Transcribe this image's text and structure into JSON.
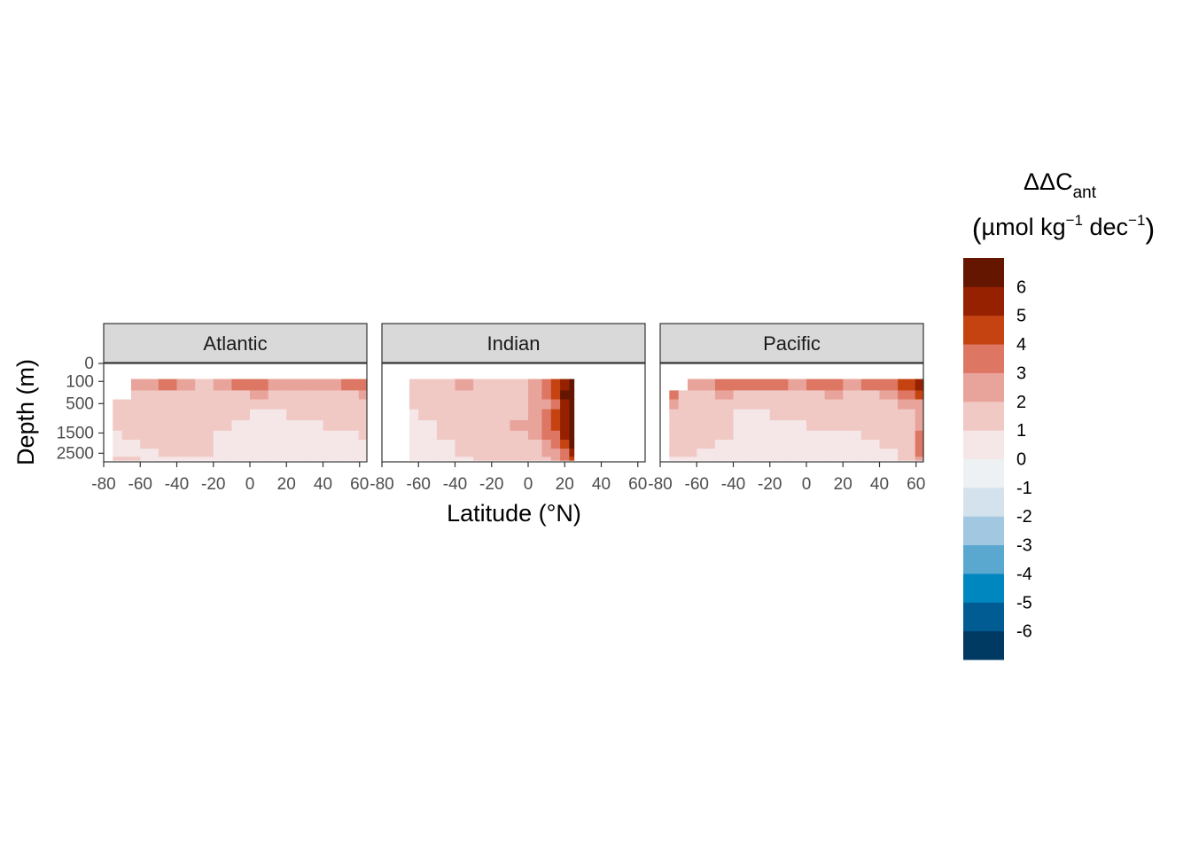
{
  "chart_data": {
    "type": "heatmap",
    "plot_style": "faceted filled-contour depth sections",
    "xlabel": "Latitude (°N)",
    "ylabel": "Depth (m)",
    "x_ticks": [
      -80,
      -60,
      -40,
      -20,
      0,
      20,
      40,
      60
    ],
    "x_tick_labels": [
      "-80",
      "-60",
      "-40",
      "-20",
      "0",
      "20",
      "40",
      "60"
    ],
    "xlim": [
      -80,
      64
    ],
    "y_scale": "square-root, reversed",
    "y_ticks": [
      0,
      100,
      500,
      1500,
      2500
    ],
    "y_tick_labels": [
      "0",
      "100",
      "500",
      "1500",
      "2500"
    ],
    "ylim": [
      0,
      3000
    ],
    "facets": [
      {
        "name": "Atlantic",
        "lat": [
          -75,
          -65,
          -55,
          -45,
          -35,
          -25,
          -15,
          -5,
          5,
          15,
          25,
          35,
          45,
          55,
          64
        ],
        "depth": [
          150,
          300,
          500,
          800,
          1200,
          1600,
          2000,
          2500,
          2900
        ],
        "lat_start_by_depth": [
          -65,
          -65,
          -75,
          -75,
          -75,
          -75,
          -75,
          -75,
          -75
        ],
        "values": [
          [
            2.6,
            2.1,
            2.5,
            3.1,
            2.3,
            1.8,
            2.2,
            3.0,
            3.8,
            2.5,
            2.0,
            2.6,
            2.2,
            3.0,
            3.6
          ],
          [
            1.8,
            1.6,
            1.7,
            1.9,
            1.6,
            1.4,
            1.5,
            1.8,
            2.0,
            1.6,
            1.4,
            1.6,
            1.5,
            1.7,
            2.0
          ],
          [
            1.3,
            1.2,
            1.5,
            1.3,
            1.2,
            1.4,
            1.3,
            1.2,
            1.1,
            1.2,
            1.2,
            1.3,
            1.3,
            1.4,
            1.5
          ],
          [
            1.2,
            1.4,
            1.6,
            1.3,
            1.5,
            1.2,
            1.3,
            1.1,
            0.9,
            0.9,
            1.0,
            1.1,
            1.2,
            1.3,
            1.4
          ],
          [
            1.1,
            1.3,
            1.4,
            1.5,
            1.3,
            1.2,
            1.0,
            0.8,
            0.7,
            0.8,
            0.8,
            0.9,
            1.0,
            1.1,
            1.2
          ],
          [
            0.8,
            1.1,
            1.2,
            1.4,
            1.3,
            1.1,
            0.9,
            0.7,
            0.6,
            0.7,
            0.7,
            0.8,
            0.9,
            0.9,
            1.0
          ],
          [
            0.7,
            0.9,
            1.1,
            1.2,
            1.4,
            1.2,
            0.8,
            0.6,
            0.6,
            0.6,
            0.6,
            0.7,
            0.8,
            0.8,
            0.9
          ],
          [
            0.7,
            0.8,
            0.9,
            1.0,
            1.1,
            1.0,
            0.8,
            0.6,
            0.5,
            0.5,
            0.6,
            0.6,
            0.7,
            0.7,
            0.8
          ],
          [
            1.1,
            1.0,
            0.9,
            0.8,
            0.8,
            0.7,
            0.6,
            0.6,
            0.5,
            0.5,
            0.5,
            0.6,
            0.6,
            0.6,
            0.7
          ]
        ]
      },
      {
        "name": "Indian",
        "lat": [
          -65,
          -55,
          -45,
          -35,
          -25,
          -15,
          -5,
          5,
          10,
          15,
          20,
          25
        ],
        "depth": [
          150,
          300,
          500,
          800,
          1200,
          1600,
          2000,
          2500,
          2900
        ],
        "lat_start_by_depth": [
          -65,
          -65,
          -65,
          -65,
          -65,
          -65,
          -65,
          -65,
          -65
        ],
        "values": [
          [
            1.4,
            1.2,
            1.7,
            2.0,
            1.5,
            1.8,
            1.6,
            2.6,
            3.0,
            4.0,
            5.6,
            6.6
          ],
          [
            1.3,
            1.1,
            1.5,
            1.3,
            1.6,
            1.4,
            1.8,
            2.4,
            3.2,
            4.5,
            6.2,
            6.8
          ],
          [
            1.2,
            1.0,
            1.2,
            1.5,
            1.3,
            1.6,
            1.7,
            2.1,
            2.8,
            3.6,
            5.1,
            6.9
          ],
          [
            0.8,
            1.2,
            1.4,
            1.3,
            1.6,
            1.8,
            1.9,
            2.3,
            3.0,
            4.2,
            5.4,
            7.0
          ],
          [
            0.6,
            0.9,
            1.2,
            1.4,
            1.5,
            1.7,
            2.0,
            2.6,
            3.4,
            4.6,
            5.8,
            7.0
          ],
          [
            0.5,
            0.7,
            1.0,
            1.3,
            1.4,
            1.6,
            1.8,
            2.2,
            3.0,
            3.9,
            5.3,
            6.8
          ],
          [
            0.5,
            0.6,
            0.9,
            1.1,
            1.3,
            1.5,
            1.7,
            1.9,
            2.5,
            3.2,
            4.6,
            6.5
          ],
          [
            0.5,
            0.6,
            0.8,
            1.0,
            1.1,
            1.3,
            1.5,
            1.7,
            2.1,
            2.7,
            3.8,
            5.9
          ],
          [
            0.5,
            0.5,
            0.7,
            0.9,
            1.0,
            1.2,
            1.4,
            1.6,
            1.9,
            2.4,
            3.1,
            4.8
          ]
        ]
      },
      {
        "name": "Pacific",
        "lat": [
          -75,
          -65,
          -55,
          -45,
          -35,
          -25,
          -15,
          -5,
          5,
          15,
          25,
          35,
          45,
          55,
          64
        ],
        "depth": [
          150,
          300,
          500,
          800,
          1200,
          1600,
          2000,
          2500,
          2900
        ],
        "lat_start_by_depth": [
          -65,
          -75,
          -75,
          -75,
          -75,
          -75,
          -75,
          -75,
          -75
        ],
        "values": [
          [
            2.3,
            2.1,
            2.6,
            3.1,
            3.4,
            3.0,
            3.2,
            2.9,
            3.1,
            3.3,
            2.8,
            3.0,
            3.6,
            4.8,
            5.8
          ],
          [
            3.6,
            1.9,
            1.8,
            2.0,
            1.7,
            1.8,
            1.9,
            1.8,
            1.9,
            2.0,
            1.8,
            1.9,
            2.4,
            3.3,
            4.2
          ],
          [
            2.8,
            1.6,
            1.5,
            1.3,
            1.2,
            1.3,
            1.4,
            1.5,
            1.6,
            1.5,
            1.4,
            1.5,
            1.8,
            2.2,
            2.6
          ],
          [
            1.4,
            1.3,
            1.2,
            1.1,
            0.9,
            0.9,
            1.0,
            1.2,
            1.3,
            1.2,
            1.1,
            1.2,
            1.4,
            1.7,
            2.2
          ],
          [
            1.3,
            1.3,
            1.2,
            1.1,
            0.8,
            0.7,
            0.8,
            0.9,
            1.1,
            1.0,
            1.0,
            1.1,
            1.2,
            1.5,
            2.6
          ],
          [
            1.2,
            1.2,
            1.1,
            1.0,
            0.8,
            0.7,
            0.7,
            0.8,
            0.9,
            0.9,
            0.9,
            1.0,
            1.1,
            1.4,
            3.1
          ],
          [
            1.1,
            1.1,
            1.0,
            0.9,
            0.8,
            0.7,
            0.7,
            0.7,
            0.8,
            0.8,
            0.8,
            0.9,
            1.0,
            1.3,
            3.6
          ],
          [
            1.0,
            1.0,
            0.9,
            0.9,
            0.8,
            0.7,
            0.7,
            0.7,
            0.7,
            0.7,
            0.8,
            0.8,
            0.9,
            1.2,
            3.2
          ],
          [
            0.9,
            0.9,
            0.8,
            0.8,
            0.7,
            0.7,
            0.7,
            0.7,
            0.7,
            0.7,
            0.7,
            0.8,
            0.8,
            1.0,
            2.4
          ]
        ]
      }
    ],
    "legend": {
      "title_line1_base": "ΔΔC",
      "title_line1_sub": "ant",
      "title_line2": {
        "open": "(",
        "a": "µmol kg",
        "sup1": "−1",
        "b": " dec",
        "sup2": "−1",
        "close": ")"
      },
      "position": "right",
      "breaks": [
        -7,
        -6,
        -5,
        -4,
        -3,
        -2,
        -1,
        0,
        1,
        2,
        3,
        4,
        5,
        6,
        7
      ],
      "labels": [
        "-6",
        "-5",
        "-4",
        "-3",
        "-2",
        "-1",
        "0",
        "1",
        "2",
        "3",
        "4",
        "5",
        "6"
      ],
      "colors": [
        "#003a63",
        "#005c93",
        "#0087bf",
        "#5aa7cf",
        "#a2c7e0",
        "#d4e2ee",
        "#eef1f4",
        "#f5e6e7",
        "#f0c8c4",
        "#e8a39a",
        "#dd7763",
        "#c54311",
        "#962100",
        "#641600"
      ]
    },
    "grid": false
  }
}
